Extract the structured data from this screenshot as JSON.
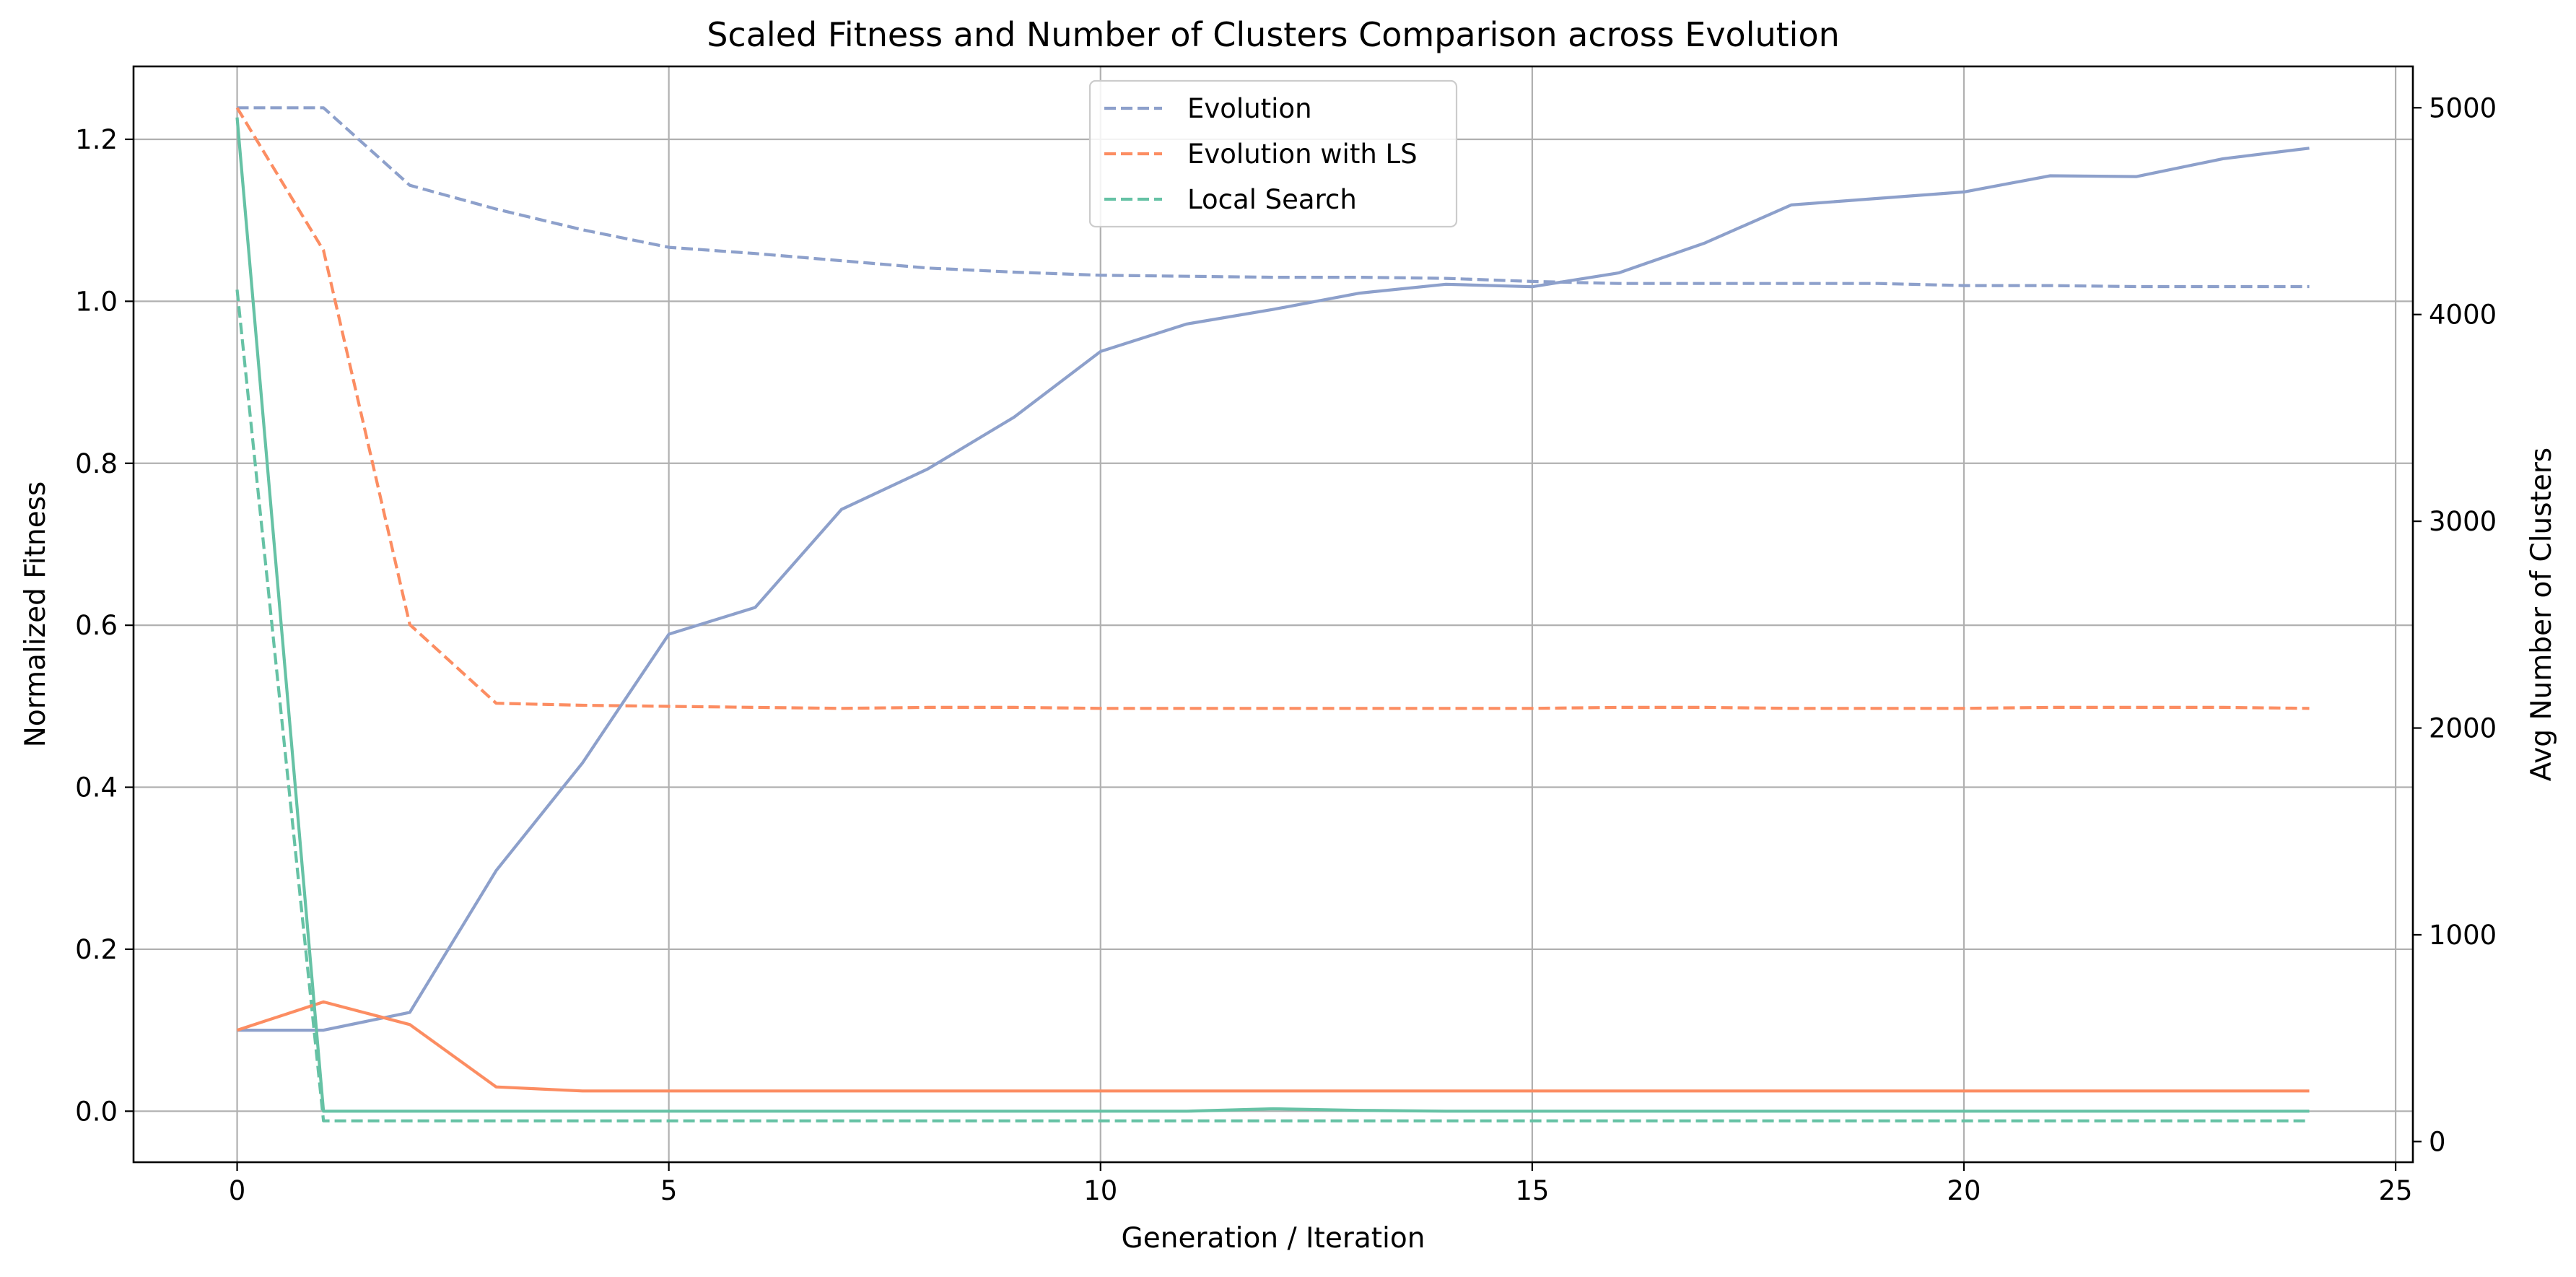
{
  "chart_data": {
    "type": "line",
    "title": "Scaled Fitness and Number of Clusters Comparison across Evolution",
    "xlabel": "Generation / Iteration",
    "ylabel_left": "Normalized Fitness",
    "ylabel_right": "Avg Number of Clusters",
    "xlim": [
      -1.2,
      25.2
    ],
    "ylim_left": [
      -0.063,
      1.29
    ],
    "ylim_right": [
      -100,
      5200
    ],
    "x_ticks": [
      0,
      5,
      10,
      15,
      20,
      25
    ],
    "y_ticks_left": [
      "0.0",
      "0.2",
      "0.4",
      "0.6",
      "0.8",
      "1.0",
      "1.2"
    ],
    "y_ticks_right": [
      "0",
      "1000",
      "2000",
      "3000",
      "4000",
      "5000"
    ],
    "grid": true,
    "legend_position": "top-center",
    "legend": [
      {
        "label": "Evolution",
        "color": "#8da0cb",
        "style": "dashed"
      },
      {
        "label": "Evolution with LS",
        "color": "#fc8d62",
        "style": "dashed"
      },
      {
        "label": "Local Search",
        "color": "#66c2a5",
        "style": "dashed"
      }
    ],
    "fitness_series": [
      {
        "name": "Evolution",
        "color": "#8da0cb",
        "style": "solid",
        "x": [
          0,
          1,
          2,
          3,
          4,
          5,
          6,
          7,
          8,
          9,
          10,
          11,
          12,
          13,
          14,
          15,
          16,
          17,
          18,
          19,
          20,
          21,
          22,
          23,
          24
        ],
        "values": [
          0.1,
          0.1,
          0.122,
          0.297,
          0.43,
          0.589,
          0.622,
          0.743,
          0.793,
          0.857,
          0.938,
          0.972,
          0.99,
          1.01,
          1.021,
          1.018,
          1.035,
          1.072,
          1.119,
          1.127,
          1.135,
          1.155,
          1.154,
          1.176,
          1.189
        ]
      },
      {
        "name": "Evolution with LS",
        "color": "#fc8d62",
        "style": "solid",
        "x": [
          0,
          1,
          2,
          3,
          4,
          5,
          6,
          7,
          8,
          9,
          10,
          11,
          12,
          13,
          14,
          15,
          16,
          17,
          18,
          19,
          20,
          21,
          22,
          23,
          24
        ],
        "values": [
          0.1,
          0.135,
          0.107,
          0.03,
          0.025,
          0.025,
          0.025,
          0.025,
          0.025,
          0.025,
          0.025,
          0.025,
          0.025,
          0.025,
          0.025,
          0.025,
          0.025,
          0.025,
          0.025,
          0.025,
          0.025,
          0.025,
          0.025,
          0.025,
          0.025
        ]
      },
      {
        "name": "Local Search",
        "color": "#66c2a5",
        "style": "solid",
        "x": [
          0,
          1,
          2,
          3,
          4,
          5,
          6,
          7,
          8,
          9,
          10,
          11,
          12,
          13,
          14,
          15,
          16,
          17,
          18,
          19,
          20,
          21,
          22,
          23,
          24
        ],
        "values": [
          1.227,
          0.0,
          0.0,
          0.0,
          0.0,
          0.0,
          0.0,
          0.0,
          0.0,
          0.0,
          0.0,
          0.0,
          0.003,
          0.001,
          0.0,
          0.0,
          0.0,
          0.0,
          0.0,
          0.0,
          0.0,
          0.0,
          0.0,
          0.0,
          0.0
        ]
      }
    ],
    "clusters_series": [
      {
        "name": "Evolution",
        "color": "#8da0cb",
        "style": "dashed",
        "x": [
          0,
          1,
          2,
          3,
          4,
          5,
          6,
          7,
          8,
          9,
          10,
          11,
          12,
          13,
          14,
          15,
          16,
          17,
          18,
          19,
          20,
          21,
          22,
          23,
          24
        ],
        "values": [
          5000,
          5000,
          4625,
          4510,
          4410,
          4325,
          4295,
          4260,
          4225,
          4205,
          4190,
          4185,
          4180,
          4180,
          4175,
          4160,
          4150,
          4150,
          4150,
          4150,
          4140,
          4140,
          4135,
          4135,
          4135
        ]
      },
      {
        "name": "Evolution with LS",
        "color": "#fc8d62",
        "style": "dashed",
        "x": [
          0,
          1,
          2,
          3,
          4,
          5,
          6,
          7,
          8,
          9,
          10,
          11,
          12,
          13,
          14,
          15,
          16,
          17,
          18,
          19,
          20,
          21,
          22,
          23,
          24
        ],
        "values": [
          5000,
          4310,
          2500,
          2120,
          2110,
          2105,
          2100,
          2095,
          2100,
          2100,
          2095,
          2095,
          2095,
          2095,
          2095,
          2095,
          2100,
          2100,
          2095,
          2095,
          2095,
          2100,
          2100,
          2100,
          2095
        ]
      },
      {
        "name": "Local Search",
        "color": "#66c2a5",
        "style": "dashed",
        "x": [
          0,
          1,
          2,
          3,
          4,
          5,
          6,
          7,
          8,
          9,
          10,
          11,
          12,
          13,
          14,
          15,
          16,
          17,
          18,
          19,
          20,
          21,
          22,
          23,
          24
        ],
        "values": [
          4120,
          100,
          100,
          100,
          100,
          100,
          100,
          100,
          100,
          100,
          100,
          100,
          100,
          100,
          100,
          100,
          100,
          100,
          100,
          100,
          100,
          100,
          100,
          100,
          100
        ]
      }
    ]
  }
}
